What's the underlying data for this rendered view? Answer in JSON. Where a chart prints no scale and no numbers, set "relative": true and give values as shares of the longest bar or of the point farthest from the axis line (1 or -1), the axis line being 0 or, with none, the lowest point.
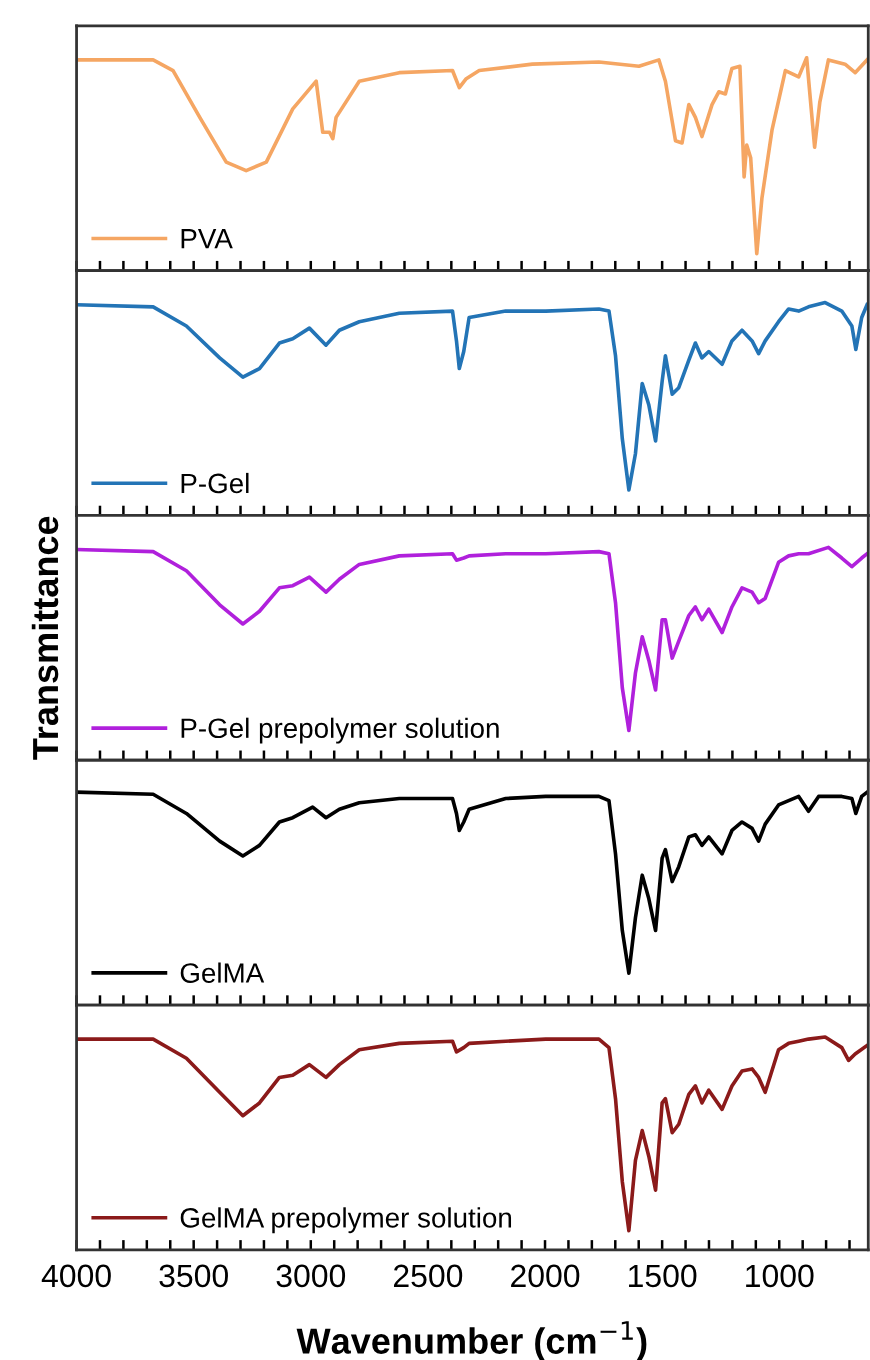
{
  "chart_data": [
    {
      "type": "line",
      "relative": true,
      "legend": "bottom left",
      "tick_labels": false,
      "xlim": [
        4000,
        620
      ],
      "xticks": [
        4000,
        {
          "value": 3900,
          "label": null
        },
        {
          "value": 3800,
          "label": null
        },
        {
          "value": 3700,
          "label": null
        },
        {
          "value": 3600,
          "label": null
        },
        3500,
        {
          "value": 3400,
          "label": null
        },
        {
          "value": 3300,
          "label": null
        },
        {
          "value": 3200,
          "label": null
        },
        {
          "value": 3100,
          "label": null
        },
        3000,
        {
          "value": 2900,
          "label": null
        },
        {
          "value": 2800,
          "label": null
        },
        {
          "value": 2700,
          "label": null
        },
        {
          "value": 2600,
          "label": null
        },
        2500,
        {
          "value": 2400,
          "label": null
        },
        {
          "value": 2300,
          "label": null
        },
        {
          "value": 2200,
          "label": null
        },
        {
          "value": 2100,
          "label": null
        },
        2000,
        {
          "value": 1900,
          "label": null
        },
        {
          "value": 1800,
          "label": null
        },
        {
          "value": 1700,
          "label": null
        },
        {
          "value": 1600,
          "label": null
        },
        1500,
        {
          "value": 1400,
          "label": null
        },
        {
          "value": 1300,
          "label": null
        },
        {
          "value": 1200,
          "label": null
        },
        {
          "value": 1100,
          "label": null
        },
        1000,
        {
          "value": 900,
          "label": null
        },
        {
          "value": 800,
          "label": null
        },
        {
          "value": 700,
          "label": null
        }
      ],
      "series": [
        {
          "name": "PVA",
          "color": "#f5a663",
          "x": [
            4000,
            3673,
            3588,
            3474,
            3361,
            3276,
            3190,
            3077,
            2977,
            2949,
            2920,
            2906,
            2892,
            2793,
            2622,
            2395,
            2366,
            2338,
            2281,
            2054,
            1770,
            1599,
            1514,
            1486,
            1443,
            1415,
            1386,
            1358,
            1330,
            1287,
            1258,
            1230,
            1202,
            1168,
            1150,
            1139,
            1122,
            1096,
            1074,
            1031,
            974,
            917,
            883,
            866,
            849,
            827,
            790,
            719,
            676,
            625
          ],
          "values": [
            0.99,
            0.99,
            0.94,
            0.72,
            0.51,
            0.47,
            0.51,
            0.76,
            0.89,
            0.65,
            0.65,
            0.62,
            0.72,
            0.89,
            0.93,
            0.94,
            0.86,
            0.9,
            0.94,
            0.97,
            0.98,
            0.96,
            0.99,
            0.89,
            0.61,
            0.6,
            0.78,
            0.72,
            0.63,
            0.78,
            0.84,
            0.83,
            0.95,
            0.96,
            0.44,
            0.59,
            0.53,
            0.08,
            0.34,
            0.66,
            0.94,
            0.91,
            1,
            0.79,
            0.58,
            0.79,
            0.99,
            0.97,
            0.93,
            0.99
          ]
        }
      ]
    },
    {
      "type": "line",
      "relative": true,
      "legend": "bottom left",
      "tick_labels": false,
      "xlim": [
        4000,
        620
      ],
      "xticks": [
        4000,
        {
          "value": 3900,
          "label": null
        },
        {
          "value": 3800,
          "label": null
        },
        {
          "value": 3700,
          "label": null
        },
        {
          "value": 3600,
          "label": null
        },
        3500,
        {
          "value": 3400,
          "label": null
        },
        {
          "value": 3300,
          "label": null
        },
        {
          "value": 3200,
          "label": null
        },
        {
          "value": 3100,
          "label": null
        },
        3000,
        {
          "value": 2900,
          "label": null
        },
        {
          "value": 2800,
          "label": null
        },
        {
          "value": 2700,
          "label": null
        },
        {
          "value": 2600,
          "label": null
        },
        2500,
        {
          "value": 2400,
          "label": null
        },
        {
          "value": 2300,
          "label": null
        },
        {
          "value": 2200,
          "label": null
        },
        {
          "value": 2100,
          "label": null
        },
        2000,
        {
          "value": 1900,
          "label": null
        },
        {
          "value": 1800,
          "label": null
        },
        {
          "value": 1700,
          "label": null
        },
        {
          "value": 1600,
          "label": null
        },
        1500,
        {
          "value": 1400,
          "label": null
        },
        {
          "value": 1300,
          "label": null
        },
        {
          "value": 1200,
          "label": null
        },
        {
          "value": 1100,
          "label": null
        },
        1000,
        {
          "value": 900,
          "label": null
        },
        {
          "value": 800,
          "label": null
        },
        {
          "value": 700,
          "label": null
        }
      ],
      "series": [
        {
          "name": "P-Gel",
          "color": "#2374b6",
          "x": [
            4000,
            3673,
            3531,
            3389,
            3290,
            3219,
            3134,
            3077,
            3006,
            2935,
            2878,
            2793,
            2622,
            2395,
            2378,
            2366,
            2347,
            2324,
            2168,
            1997,
            1770,
            1727,
            1699,
            1670,
            1642,
            1614,
            1585,
            1557,
            1528,
            1500,
            1486,
            1457,
            1429,
            1386,
            1358,
            1330,
            1301,
            1244,
            1202,
            1159,
            1116,
            1088,
            1060,
            1003,
            960,
            917,
            875,
            804,
            733,
            690,
            673,
            648,
            625
          ],
          "values": [
            0.99,
            0.98,
            0.89,
            0.74,
            0.65,
            0.69,
            0.81,
            0.83,
            0.88,
            0.8,
            0.87,
            0.91,
            0.95,
            0.96,
            0.82,
            0.69,
            0.77,
            0.93,
            0.96,
            0.96,
            0.97,
            0.96,
            0.75,
            0.36,
            0.12,
            0.29,
            0.62,
            0.52,
            0.35,
            0.63,
            0.75,
            0.57,
            0.6,
            0.73,
            0.81,
            0.74,
            0.77,
            0.71,
            0.82,
            0.87,
            0.82,
            0.76,
            0.82,
            0.91,
            0.97,
            0.96,
            0.98,
            1,
            0.96,
            0.89,
            0.78,
            0.93,
            0.99
          ]
        }
      ]
    },
    {
      "type": "line",
      "relative": true,
      "legend": "bottom left",
      "tick_labels": false,
      "xlim": [
        4000,
        620
      ],
      "ylabel": "Transmittance",
      "xticks": [
        4000,
        {
          "value": 3900,
          "label": null
        },
        {
          "value": 3800,
          "label": null
        },
        {
          "value": 3700,
          "label": null
        },
        {
          "value": 3600,
          "label": null
        },
        3500,
        {
          "value": 3400,
          "label": null
        },
        {
          "value": 3300,
          "label": null
        },
        {
          "value": 3200,
          "label": null
        },
        {
          "value": 3100,
          "label": null
        },
        3000,
        {
          "value": 2900,
          "label": null
        },
        {
          "value": 2800,
          "label": null
        },
        {
          "value": 2700,
          "label": null
        },
        {
          "value": 2600,
          "label": null
        },
        2500,
        {
          "value": 2400,
          "label": null
        },
        {
          "value": 2300,
          "label": null
        },
        {
          "value": 2200,
          "label": null
        },
        {
          "value": 2100,
          "label": null
        },
        2000,
        {
          "value": 1900,
          "label": null
        },
        {
          "value": 1800,
          "label": null
        },
        {
          "value": 1700,
          "label": null
        },
        {
          "value": 1600,
          "label": null
        },
        1500,
        {
          "value": 1400,
          "label": null
        },
        {
          "value": 1300,
          "label": null
        },
        {
          "value": 1200,
          "label": null
        },
        {
          "value": 1100,
          "label": null
        },
        1000,
        {
          "value": 900,
          "label": null
        },
        {
          "value": 800,
          "label": null
        },
        {
          "value": 700,
          "label": null
        }
      ],
      "series": [
        {
          "name": "P-Gel prepolymer solution",
          "color": "#b020dc",
          "x": [
            4000,
            3673,
            3531,
            3389,
            3290,
            3219,
            3134,
            3077,
            3006,
            2935,
            2878,
            2793,
            2622,
            2395,
            2378,
            2347,
            2324,
            2168,
            1997,
            1770,
            1727,
            1699,
            1670,
            1642,
            1614,
            1585,
            1557,
            1528,
            1500,
            1486,
            1457,
            1429,
            1386,
            1358,
            1330,
            1301,
            1244,
            1202,
            1159,
            1116,
            1088,
            1060,
            1003,
            960,
            917,
            875,
            790,
            733,
            690,
            648,
            625
          ],
          "values": [
            0.99,
            0.98,
            0.89,
            0.73,
            0.64,
            0.7,
            0.81,
            0.82,
            0.86,
            0.79,
            0.85,
            0.92,
            0.96,
            0.97,
            0.94,
            0.95,
            0.96,
            0.97,
            0.97,
            0.98,
            0.97,
            0.74,
            0.34,
            0.14,
            0.41,
            0.58,
            0.47,
            0.33,
            0.66,
            0.66,
            0.48,
            0.56,
            0.68,
            0.72,
            0.66,
            0.71,
            0.6,
            0.72,
            0.81,
            0.79,
            0.74,
            0.76,
            0.93,
            0.96,
            0.97,
            0.97,
            1,
            0.95,
            0.91,
            0.95,
            0.97
          ]
        }
      ]
    },
    {
      "type": "line",
      "relative": true,
      "legend": "bottom left",
      "tick_labels": false,
      "xlim": [
        4000,
        620
      ],
      "xticks": [
        4000,
        {
          "value": 3900,
          "label": null
        },
        {
          "value": 3800,
          "label": null
        },
        {
          "value": 3700,
          "label": null
        },
        {
          "value": 3600,
          "label": null
        },
        3500,
        {
          "value": 3400,
          "label": null
        },
        {
          "value": 3300,
          "label": null
        },
        {
          "value": 3200,
          "label": null
        },
        {
          "value": 3100,
          "label": null
        },
        3000,
        {
          "value": 2900,
          "label": null
        },
        {
          "value": 2800,
          "label": null
        },
        {
          "value": 2700,
          "label": null
        },
        {
          "value": 2600,
          "label": null
        },
        2500,
        {
          "value": 2400,
          "label": null
        },
        {
          "value": 2300,
          "label": null
        },
        {
          "value": 2200,
          "label": null
        },
        {
          "value": 2100,
          "label": null
        },
        2000,
        {
          "value": 1900,
          "label": null
        },
        {
          "value": 1800,
          "label": null
        },
        {
          "value": 1700,
          "label": null
        },
        {
          "value": 1600,
          "label": null
        },
        1500,
        {
          "value": 1400,
          "label": null
        },
        {
          "value": 1300,
          "label": null
        },
        {
          "value": 1200,
          "label": null
        },
        {
          "value": 1100,
          "label": null
        },
        1000,
        {
          "value": 900,
          "label": null
        },
        {
          "value": 800,
          "label": null
        },
        {
          "value": 700,
          "label": null
        }
      ],
      "series": [
        {
          "name": "GelMA",
          "color": "#000000",
          "x": [
            4000,
            3673,
            3531,
            3389,
            3290,
            3219,
            3134,
            3077,
            2992,
            2935,
            2878,
            2793,
            2622,
            2395,
            2378,
            2366,
            2347,
            2324,
            2168,
            1997,
            1770,
            1727,
            1699,
            1670,
            1642,
            1614,
            1585,
            1557,
            1528,
            1500,
            1486,
            1457,
            1429,
            1386,
            1358,
            1330,
            1301,
            1244,
            1202,
            1159,
            1116,
            1088,
            1060,
            1003,
            960,
            917,
            875,
            832,
            733,
            690,
            673,
            648,
            625
          ],
          "values": [
            1,
            0.99,
            0.9,
            0.77,
            0.7,
            0.75,
            0.86,
            0.88,
            0.93,
            0.88,
            0.92,
            0.95,
            0.97,
            0.97,
            0.9,
            0.82,
            0.86,
            0.92,
            0.97,
            0.98,
            0.98,
            0.96,
            0.71,
            0.35,
            0.15,
            0.41,
            0.61,
            0.5,
            0.35,
            0.69,
            0.73,
            0.58,
            0.65,
            0.79,
            0.8,
            0.75,
            0.79,
            0.71,
            0.82,
            0.86,
            0.83,
            0.77,
            0.85,
            0.94,
            0.96,
            0.98,
            0.91,
            0.98,
            0.98,
            0.97,
            0.9,
            0.98,
            1
          ]
        }
      ]
    },
    {
      "type": "line",
      "relative": true,
      "legend": "bottom left",
      "tick_labels": "x",
      "xlim": [
        4000,
        620
      ],
      "xlabel": "Wavenumber (cm$^{−1}$)",
      "xticks": [
        4000,
        {
          "value": 3900,
          "label": null
        },
        {
          "value": 3800,
          "label": null
        },
        {
          "value": 3700,
          "label": null
        },
        {
          "value": 3600,
          "label": null
        },
        3500,
        {
          "value": 3400,
          "label": null
        },
        {
          "value": 3300,
          "label": null
        },
        {
          "value": 3200,
          "label": null
        },
        {
          "value": 3100,
          "label": null
        },
        3000,
        {
          "value": 2900,
          "label": null
        },
        {
          "value": 2800,
          "label": null
        },
        {
          "value": 2700,
          "label": null
        },
        {
          "value": 2600,
          "label": null
        },
        2500,
        {
          "value": 2400,
          "label": null
        },
        {
          "value": 2300,
          "label": null
        },
        {
          "value": 2200,
          "label": null
        },
        {
          "value": 2100,
          "label": null
        },
        2000,
        {
          "value": 1900,
          "label": null
        },
        {
          "value": 1800,
          "label": null
        },
        {
          "value": 1700,
          "label": null
        },
        {
          "value": 1600,
          "label": null
        },
        1500,
        {
          "value": 1400,
          "label": null
        },
        {
          "value": 1300,
          "label": null
        },
        {
          "value": 1200,
          "label": null
        },
        {
          "value": 1100,
          "label": null
        },
        1000,
        {
          "value": 900,
          "label": null
        },
        {
          "value": 800,
          "label": null
        },
        {
          "value": 700,
          "label": null
        }
      ],
      "series": [
        {
          "name": "GelMA prepolymer solution",
          "color": "#8b1a1a",
          "x": [
            4000,
            3673,
            3531,
            3389,
            3290,
            3219,
            3134,
            3077,
            3006,
            2935,
            2878,
            2793,
            2622,
            2395,
            2378,
            2347,
            2324,
            2168,
            1997,
            1770,
            1727,
            1699,
            1670,
            1642,
            1614,
            1585,
            1557,
            1528,
            1500,
            1486,
            1457,
            1429,
            1386,
            1358,
            1330,
            1301,
            1244,
            1202,
            1159,
            1116,
            1088,
            1060,
            1003,
            960,
            917,
            875,
            804,
            733,
            704,
            676,
            625
          ],
          "values": [
            0.99,
            0.99,
            0.9,
            0.74,
            0.63,
            0.69,
            0.81,
            0.82,
            0.87,
            0.81,
            0.87,
            0.94,
            0.97,
            0.98,
            0.93,
            0.95,
            0.97,
            0.98,
            0.99,
            0.99,
            0.95,
            0.71,
            0.32,
            0.09,
            0.42,
            0.56,
            0.44,
            0.28,
            0.69,
            0.71,
            0.55,
            0.59,
            0.73,
            0.77,
            0.69,
            0.75,
            0.66,
            0.77,
            0.84,
            0.85,
            0.81,
            0.74,
            0.94,
            0.97,
            0.98,
            0.99,
            1,
            0.95,
            0.89,
            0.92,
            0.96
          ]
        }
      ]
    }
  ]
}
